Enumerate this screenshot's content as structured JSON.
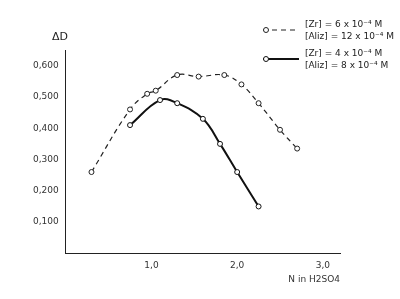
{
  "chart_data": {
    "type": "line",
    "y_label": "ΔD",
    "x_label": "N in H2SO4",
    "series": [
      {
        "name": "[Zr] = 6 x 10⁻⁴ M\n[Aliz] = 12 x 10⁻⁴ M",
        "color": "#222222",
        "line_style": "dashed",
        "marker": "circle",
        "x": [
          0.3,
          0.75,
          0.95,
          1.05,
          1.3,
          1.55,
          1.85,
          2.05,
          2.25,
          2.5,
          2.7
        ],
        "values": [
          0.26,
          0.46,
          0.51,
          0.52,
          0.57,
          0.565,
          0.57,
          0.54,
          0.48,
          0.395,
          0.335
        ]
      },
      {
        "name": "[Zr] = 4 x 10⁻⁴ M\n[Aliz] = 8 x 10⁻⁴ M",
        "color": "#111111",
        "line_style": "solid",
        "marker": "circle",
        "x": [
          0.75,
          1.1,
          1.3,
          1.6,
          1.8,
          2.0,
          2.25
        ],
        "values": [
          0.41,
          0.49,
          0.48,
          0.43,
          0.35,
          0.26,
          0.15
        ]
      }
    ],
    "xlim": [
      0,
      3.2
    ],
    "xticks": [
      {
        "value": 1,
        "label": "1,0"
      },
      {
        "value": 2,
        "label": "2,0"
      },
      {
        "value": 3,
        "label": "3,0"
      }
    ],
    "ylim": [
      0,
      0.65
    ],
    "yticks": [
      {
        "value": 0.1,
        "label": "0,100"
      },
      {
        "value": 0.2,
        "label": "0,200"
      },
      {
        "value": 0.3,
        "label": "0,300"
      },
      {
        "value": 0.4,
        "label": "0,400"
      },
      {
        "value": 0.5,
        "label": "0,500"
      },
      {
        "value": 0.6,
        "label": "0,600"
      }
    ],
    "grid": false,
    "legend": "upper right"
  }
}
